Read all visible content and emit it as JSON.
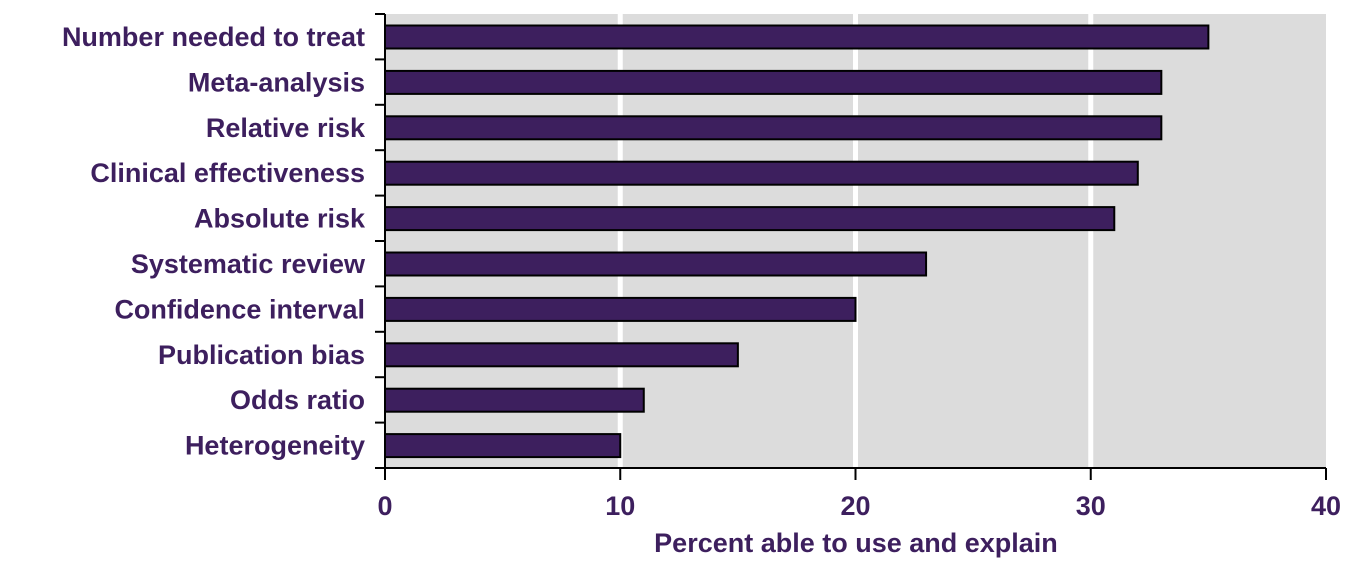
{
  "chart_data": {
    "type": "bar",
    "orientation": "horizontal",
    "categories": [
      "Number needed to treat",
      "Meta-analysis",
      "Relative risk",
      "Clinical effectiveness",
      "Absolute risk",
      "Systematic review",
      "Confidence interval",
      "Publication bias",
      "Odds ratio",
      "Heterogeneity"
    ],
    "values": [
      35,
      33,
      33,
      32,
      31,
      23,
      20,
      15,
      11,
      10
    ],
    "title": "",
    "xlabel": "Percent able to use and explain",
    "ylabel": "",
    "xlim": [
      0,
      40
    ],
    "xticks": [
      "0",
      "10",
      "20",
      "30",
      "40"
    ],
    "grid": "vertical",
    "legend": "none"
  },
  "colors": {
    "bar_fill": "#3d1f5e",
    "bar_stroke": "#000000",
    "plot_background": "#dcdcdc",
    "gridline": "#ffffff",
    "text": "#3d1f5e",
    "axis": "#000000"
  }
}
